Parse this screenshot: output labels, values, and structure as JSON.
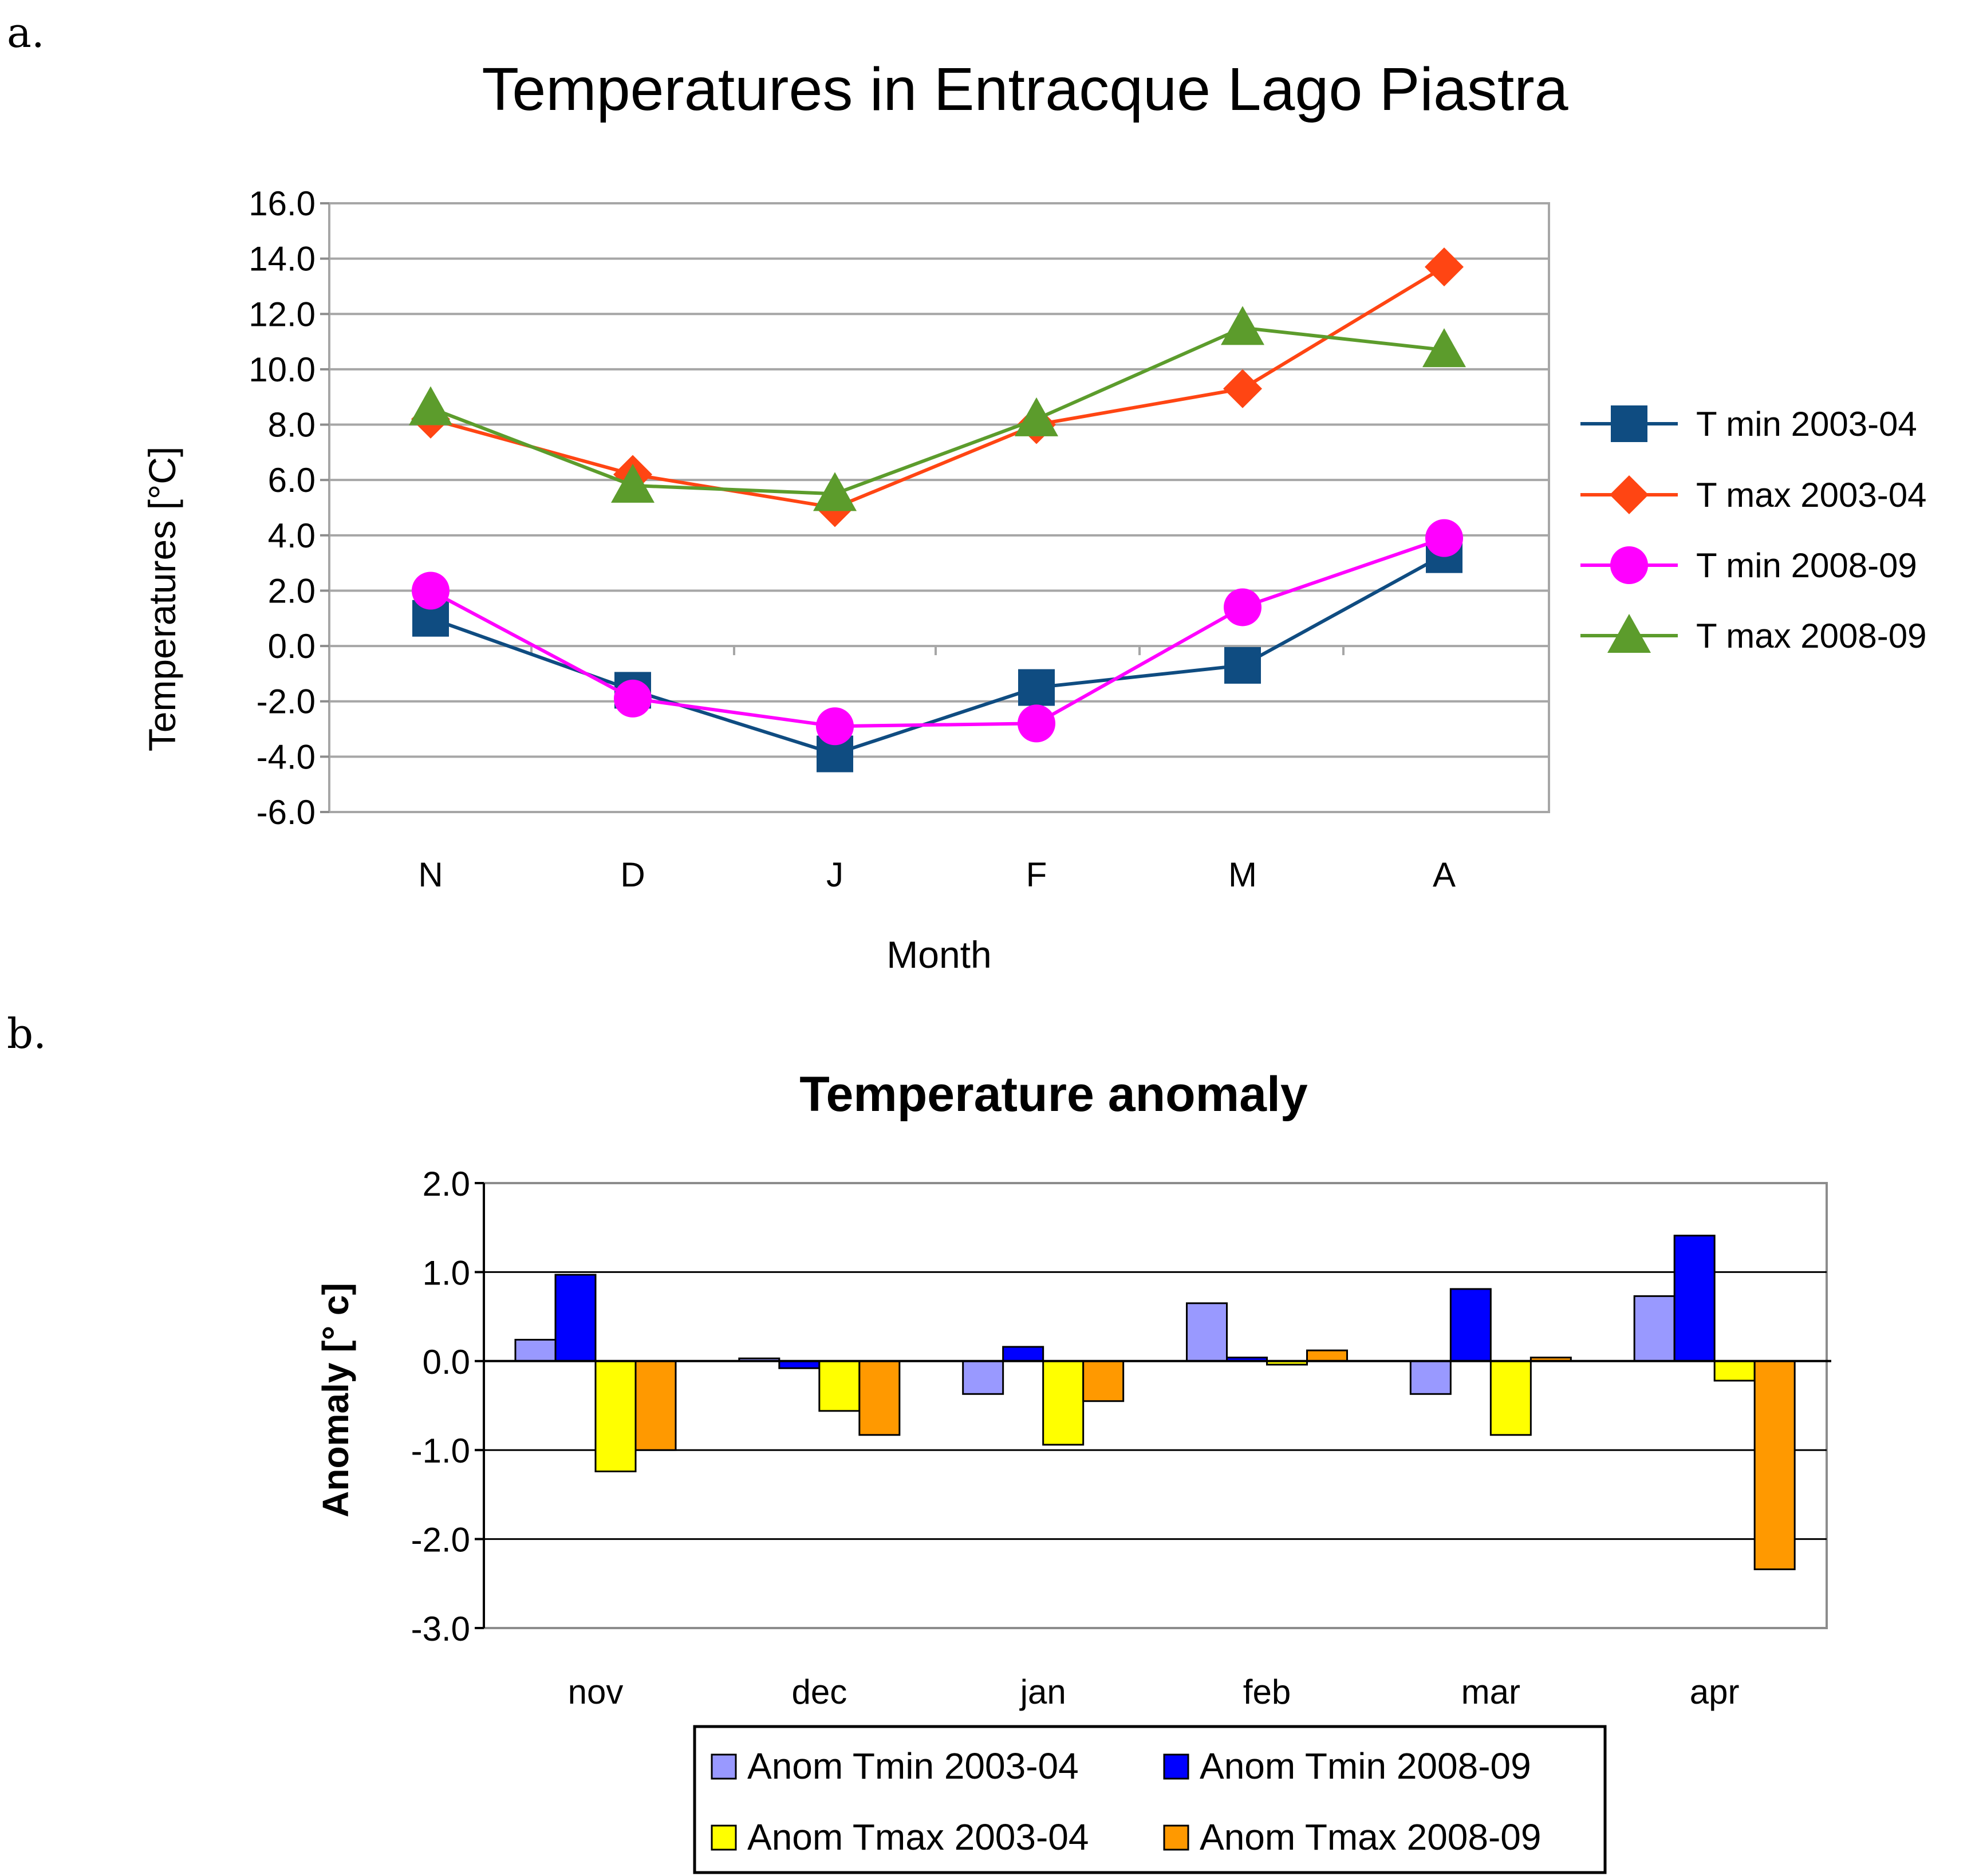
{
  "panel_labels": {
    "a": "a.",
    "b": "b."
  },
  "chart_data": [
    {
      "type": "line",
      "title": "Temperatures in Entracque Lago Piastra",
      "xlabel": "Month",
      "ylabel": "Temperatures [°C]",
      "categories": [
        "N",
        "D",
        "J",
        "F",
        "M",
        "A"
      ],
      "ylim": [
        -6,
        16
      ],
      "yticks": [
        -6,
        -4,
        -2,
        0,
        2,
        4,
        6,
        8,
        10,
        12,
        14,
        16
      ],
      "ytick_labels": [
        "-6.0",
        "-4.0",
        "-2.0",
        "0.0",
        "2.0",
        "4.0",
        "6.0",
        "8.0",
        "10.0",
        "12.0",
        "14.0",
        "16.0"
      ],
      "grid": "horizontal",
      "legend": "right",
      "series": [
        {
          "name": "T min 2003-04",
          "color": "#0f4c81",
          "marker": "square",
          "values": [
            1.0,
            -1.6,
            -3.9,
            -1.5,
            -0.7,
            3.3
          ]
        },
        {
          "name": "T max 2003-04",
          "color": "#ff4513",
          "marker": "diamond",
          "values": [
            8.2,
            6.2,
            5.0,
            8.0,
            9.3,
            13.7
          ]
        },
        {
          "name": "T min 2008-09",
          "color": "#ff00ff",
          "marker": "circle",
          "values": [
            2.0,
            -1.9,
            -2.9,
            -2.8,
            1.4,
            3.9
          ]
        },
        {
          "name": "T max 2008-09",
          "color": "#5c9c2c",
          "marker": "triangle",
          "values": [
            8.6,
            5.8,
            5.5,
            8.2,
            11.5,
            10.7
          ]
        }
      ]
    },
    {
      "type": "bar",
      "title": "Temperature anomaly",
      "xlabel": "",
      "ylabel": "Anomaly [° c]",
      "categories": [
        "nov",
        "dec",
        "jan",
        "feb",
        "mar",
        "apr"
      ],
      "ylim": [
        -3,
        2
      ],
      "yticks": [
        -3,
        -2,
        -1,
        0,
        1,
        2
      ],
      "ytick_labels": [
        "-3.0",
        "-2.0",
        "-1.0",
        "0.0",
        "1.0",
        "2.0"
      ],
      "grid": "horizontal",
      "legend": "bottom",
      "series": [
        {
          "name": "Anom Tmin 2003-04",
          "color": "#9999ff",
          "values": [
            0.24,
            0.03,
            -0.37,
            0.65,
            -0.37,
            0.73
          ]
        },
        {
          "name": "Anom Tmin 2008-09",
          "color": "#0000ff",
          "values": [
            0.97,
            -0.08,
            0.16,
            0.04,
            0.81,
            1.41
          ]
        },
        {
          "name": "Anom Tmax 2003-04",
          "color": "#ffff00",
          "values": [
            -1.24,
            -0.56,
            -0.94,
            -0.04,
            -0.83,
            -0.22
          ]
        },
        {
          "name": "Anom Tmax 2008-09",
          "color": "#ff9900",
          "values": [
            -1.0,
            -0.83,
            -0.45,
            0.12,
            0.04,
            -2.34
          ]
        }
      ]
    }
  ]
}
